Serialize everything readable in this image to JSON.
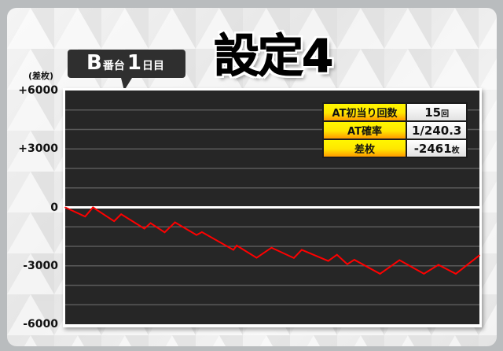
{
  "header": {
    "title": "設定4",
    "machine": "B",
    "machine_suffix": "番台",
    "day": "1",
    "day_suffix": "日目"
  },
  "stats": [
    {
      "label": "AT初当り回数",
      "value": "15",
      "unit": "回"
    },
    {
      "label": "AT確率",
      "value": "1/240.3",
      "unit": ""
    },
    {
      "label": "差枚",
      "value": "-2461",
      "unit": "枚"
    }
  ],
  "colors": {
    "line": "#ff0000",
    "plot_bg": "#262626",
    "grid": "#5a5a5a",
    "zero_line": "#ffffff",
    "label_bg": "#ffee00",
    "value_bg": "#eeeeee"
  },
  "chart_data": {
    "type": "line",
    "title": "",
    "ylabel": "(差枚)",
    "xlabel": "",
    "ylim": [
      -6000,
      6000
    ],
    "yticks": [
      6000,
      3000,
      0,
      -3000,
      -6000
    ],
    "ytick_labels": [
      "+6000",
      "+3000",
      "0",
      "-3000",
      "-6000"
    ],
    "grid": true,
    "grid_step": 1000,
    "x": [
      0,
      4.8,
      6.7,
      11.8,
      13.5,
      19.1,
      20.6,
      24,
      26.5,
      31.7,
      33,
      40.6,
      41.4,
      46.2,
      49.8,
      55.2,
      57.1,
      63.5,
      65.6,
      68.1,
      69.8,
      76,
      80.7,
      86.6,
      90.1,
      94.3,
      100
    ],
    "y": [
      0,
      -470,
      0,
      -710,
      -350,
      -1090,
      -810,
      -1280,
      -770,
      -1420,
      -1270,
      -2180,
      -1960,
      -2590,
      -2070,
      -2600,
      -2180,
      -2750,
      -2430,
      -2920,
      -2690,
      -3410,
      -2710,
      -3410,
      -2950,
      -3410,
      -2461
    ]
  }
}
